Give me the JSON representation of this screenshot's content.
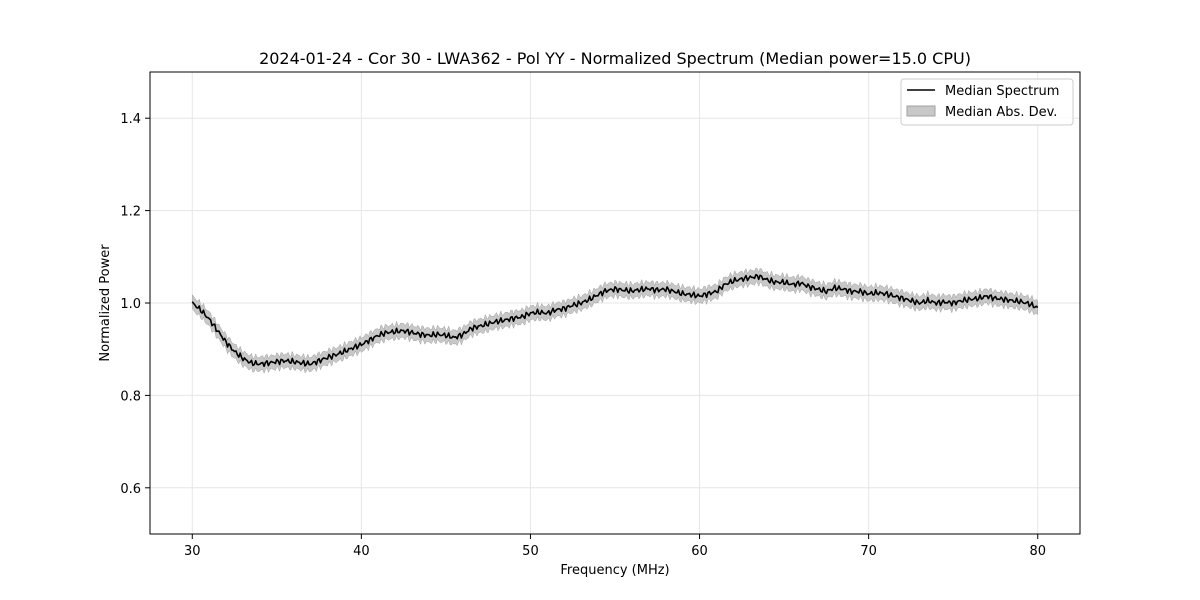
{
  "chart_data": {
    "type": "line",
    "title": "2024-01-24 - Cor 30 - LWA362 - Pol YY - Normalized Spectrum (Median power=15.0 CPU)",
    "xlabel": "Frequency (MHz)",
    "ylabel": "Normalized Power",
    "xlim": [
      27.5,
      82.5
    ],
    "ylim": [
      0.5,
      1.5
    ],
    "xticks": [
      30,
      40,
      50,
      60,
      70,
      80
    ],
    "xtick_labels": [
      "30",
      "40",
      "50",
      "60",
      "70",
      "80"
    ],
    "yticks": [
      0.6,
      0.8,
      1.0,
      1.2,
      1.4
    ],
    "ytick_labels": [
      "0.6",
      "0.8",
      "1.0",
      "1.2",
      "1.4"
    ],
    "grid": true,
    "legend_position": "top-right",
    "legend": [
      "Median Spectrum",
      "Median Abs. Dev."
    ],
    "colors": {
      "line": "#000000",
      "band": "#c8c8c8",
      "band_edge": "#a0a0a0",
      "grid": "#e6e6e6"
    },
    "series": [
      {
        "name": "Median Spectrum",
        "x": [
          30.0,
          30.5,
          31.0,
          31.5,
          32.0,
          32.5,
          33.0,
          33.5,
          34.0,
          34.5,
          35.0,
          35.5,
          36.0,
          36.5,
          37.0,
          37.5,
          38.0,
          38.5,
          39.0,
          39.5,
          40.0,
          40.5,
          41.0,
          41.5,
          42.0,
          42.5,
          43.0,
          43.5,
          44.0,
          44.5,
          45.0,
          45.5,
          46.0,
          46.5,
          47.0,
          47.5,
          48.0,
          48.5,
          49.0,
          49.5,
          50.0,
          50.5,
          51.0,
          51.5,
          52.0,
          52.5,
          53.0,
          53.5,
          54.0,
          54.5,
          55.0,
          55.5,
          56.0,
          56.5,
          57.0,
          57.5,
          58.0,
          58.5,
          59.0,
          59.5,
          60.0,
          60.5,
          61.0,
          61.5,
          62.0,
          62.5,
          63.0,
          63.5,
          64.0,
          64.5,
          65.0,
          65.5,
          66.0,
          66.5,
          67.0,
          67.5,
          68.0,
          68.5,
          69.0,
          69.5,
          70.0,
          70.5,
          71.0,
          71.5,
          72.0,
          72.5,
          73.0,
          73.5,
          74.0,
          74.5,
          75.0,
          75.5,
          76.0,
          76.5,
          77.0,
          77.5,
          78.0,
          78.5,
          79.0,
          79.5,
          80.0
        ],
        "values": [
          1.0,
          0.985,
          0.965,
          0.94,
          0.915,
          0.895,
          0.88,
          0.87,
          0.868,
          0.87,
          0.873,
          0.875,
          0.873,
          0.87,
          0.868,
          0.875,
          0.882,
          0.888,
          0.895,
          0.903,
          0.91,
          0.92,
          0.93,
          0.936,
          0.938,
          0.94,
          0.936,
          0.932,
          0.93,
          0.932,
          0.93,
          0.925,
          0.932,
          0.945,
          0.95,
          0.955,
          0.96,
          0.963,
          0.967,
          0.97,
          0.978,
          0.98,
          0.978,
          0.985,
          0.988,
          0.995,
          1.0,
          1.008,
          1.018,
          1.027,
          1.03,
          1.028,
          1.026,
          1.029,
          1.031,
          1.028,
          1.03,
          1.025,
          1.02,
          1.018,
          1.015,
          1.02,
          1.025,
          1.04,
          1.048,
          1.052,
          1.055,
          1.058,
          1.05,
          1.045,
          1.045,
          1.04,
          1.043,
          1.035,
          1.03,
          1.025,
          1.033,
          1.03,
          1.025,
          1.025,
          1.02,
          1.022,
          1.02,
          1.015,
          1.01,
          1.005,
          1.0,
          1.005,
          1.0,
          1.002,
          1.0,
          1.005,
          1.008,
          1.01,
          1.015,
          1.01,
          1.008,
          1.005,
          1.003,
          0.998,
          0.99
        ]
      },
      {
        "name": "Median Abs. Dev.",
        "half_width": 0.015
      }
    ]
  }
}
